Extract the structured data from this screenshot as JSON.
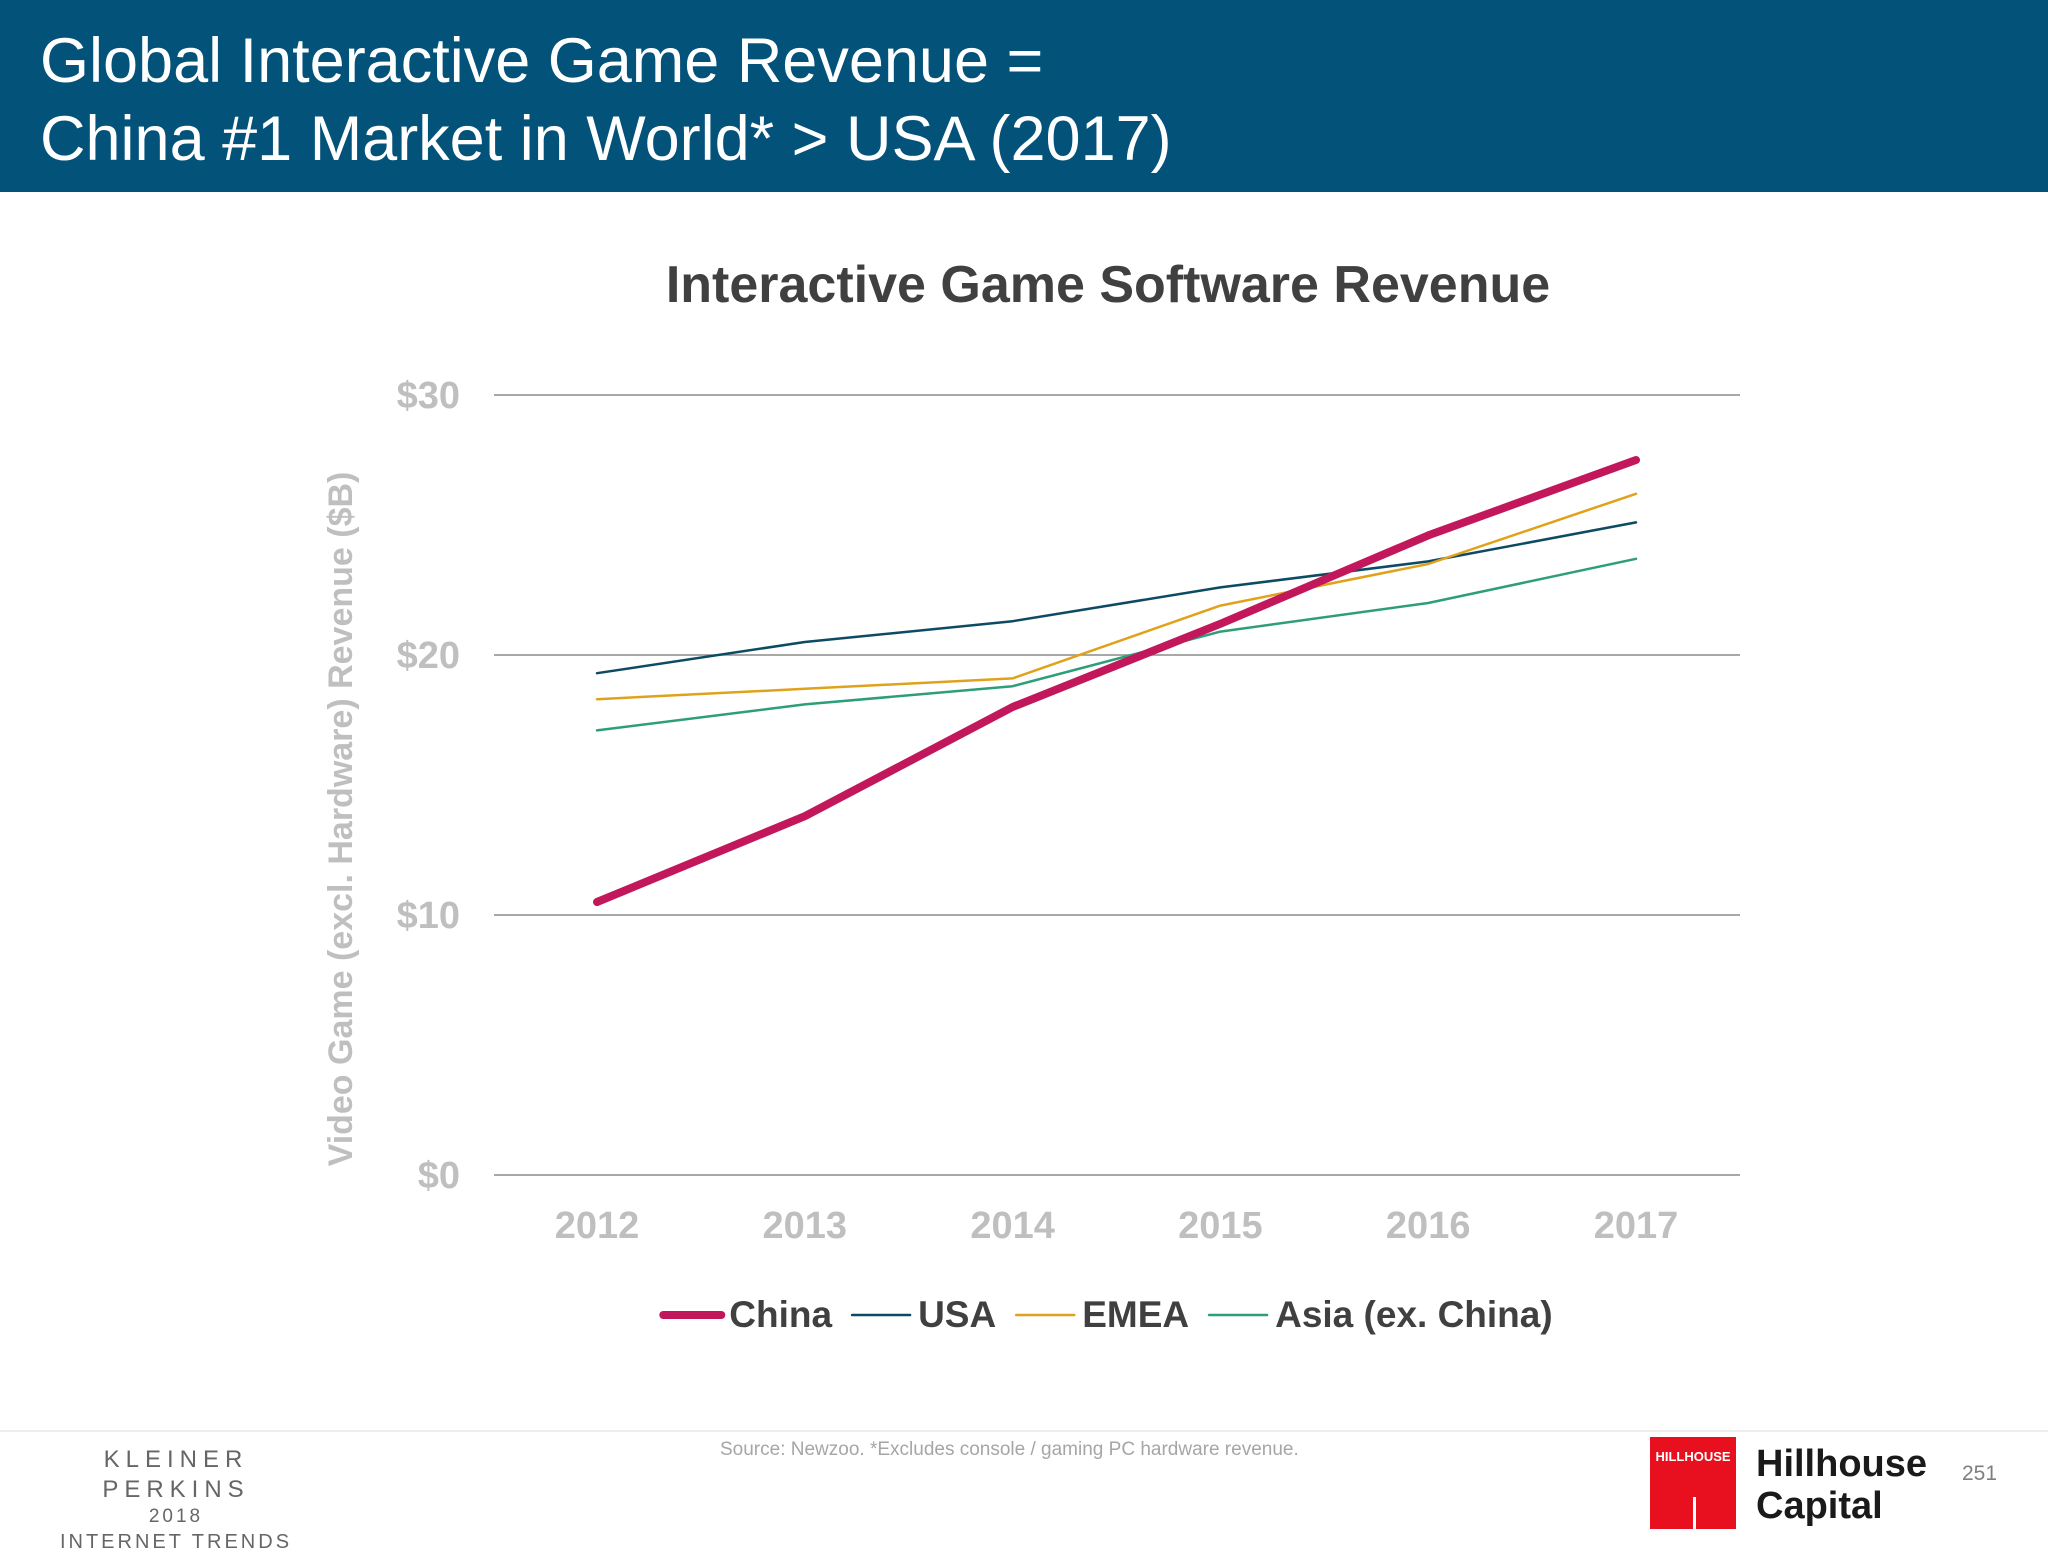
{
  "header": {
    "title_line1": "Global Interactive Game Revenue =",
    "title_line2": "China #1 Market in World* > USA (2017)"
  },
  "chart_data": {
    "type": "line",
    "title": "Interactive Game Software Revenue",
    "ylabel": "Video Game (excl. Hardware) Revenue ($B)",
    "xlabel": "",
    "x": [
      "2012",
      "2013",
      "2014",
      "2015",
      "2016",
      "2017"
    ],
    "ylim": [
      0,
      30
    ],
    "yticks": [
      0,
      10,
      20,
      30
    ],
    "ytick_labels": [
      "$0",
      "$10",
      "$20",
      "$30"
    ],
    "grid": true,
    "legend_position": "bottom",
    "series": [
      {
        "name": "China",
        "color": "#c2185b",
        "emphasis": true,
        "values": [
          10.5,
          13.8,
          18.0,
          21.2,
          24.6,
          27.5
        ]
      },
      {
        "name": "USA",
        "color": "#0d4a63",
        "emphasis": false,
        "values": [
          19.3,
          20.5,
          21.3,
          22.6,
          23.6,
          25.1
        ]
      },
      {
        "name": "EMEA",
        "color": "#e1a21b",
        "emphasis": false,
        "values": [
          18.3,
          18.7,
          19.1,
          21.9,
          23.5,
          26.2
        ]
      },
      {
        "name": "Asia (ex. China)",
        "color": "#2e9e79",
        "emphasis": false,
        "values": [
          17.1,
          18.1,
          18.8,
          20.9,
          22.0,
          23.7
        ]
      }
    ]
  },
  "footer": {
    "brand_line1": "KLEINER PERKINS",
    "brand_line2": "2018",
    "brand_line3": "INTERNET TRENDS",
    "source": "Source: Newzoo. *Excludes console / gaming PC hardware revenue.",
    "logo_wordmark": "HILLHOUSE",
    "partner_line1": "Hillhouse",
    "partner_line2": "Capital",
    "page_number": "251"
  }
}
